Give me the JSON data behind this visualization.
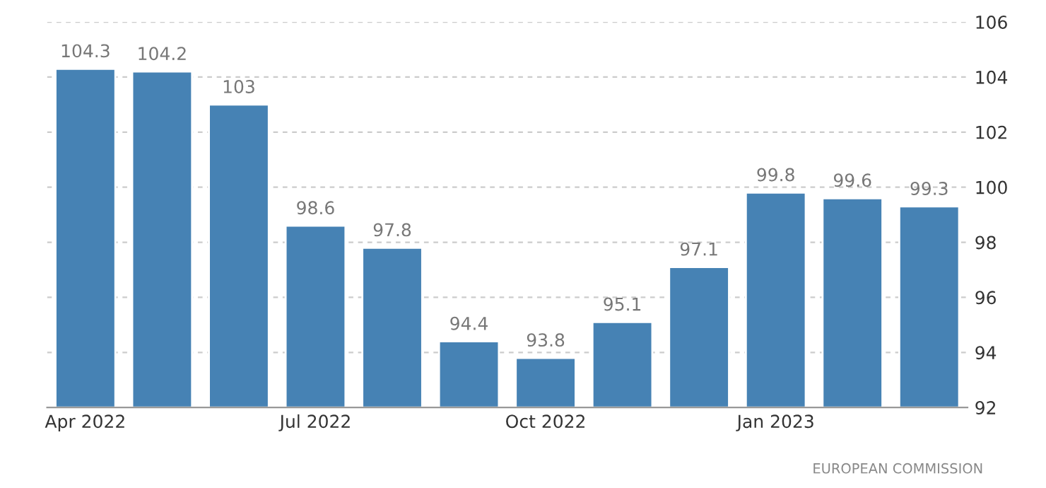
{
  "chart_data": {
    "type": "bar",
    "categories": [
      "Apr 2022",
      null,
      null,
      "Jul 2022",
      null,
      null,
      "Oct 2022",
      null,
      null,
      "Jan 2023",
      null,
      null
    ],
    "values": [
      104.3,
      104.2,
      103,
      98.6,
      97.8,
      94.4,
      93.8,
      95.1,
      97.1,
      99.8,
      99.6,
      99.3
    ],
    "color": "#4682b4",
    "ylim": [
      92,
      106
    ],
    "yticks": [
      92,
      94,
      96,
      98,
      100,
      102,
      104,
      106
    ],
    "grid": "y",
    "data_labels": true,
    "annotations": [
      "EUROPEAN COMMISSION"
    ]
  }
}
